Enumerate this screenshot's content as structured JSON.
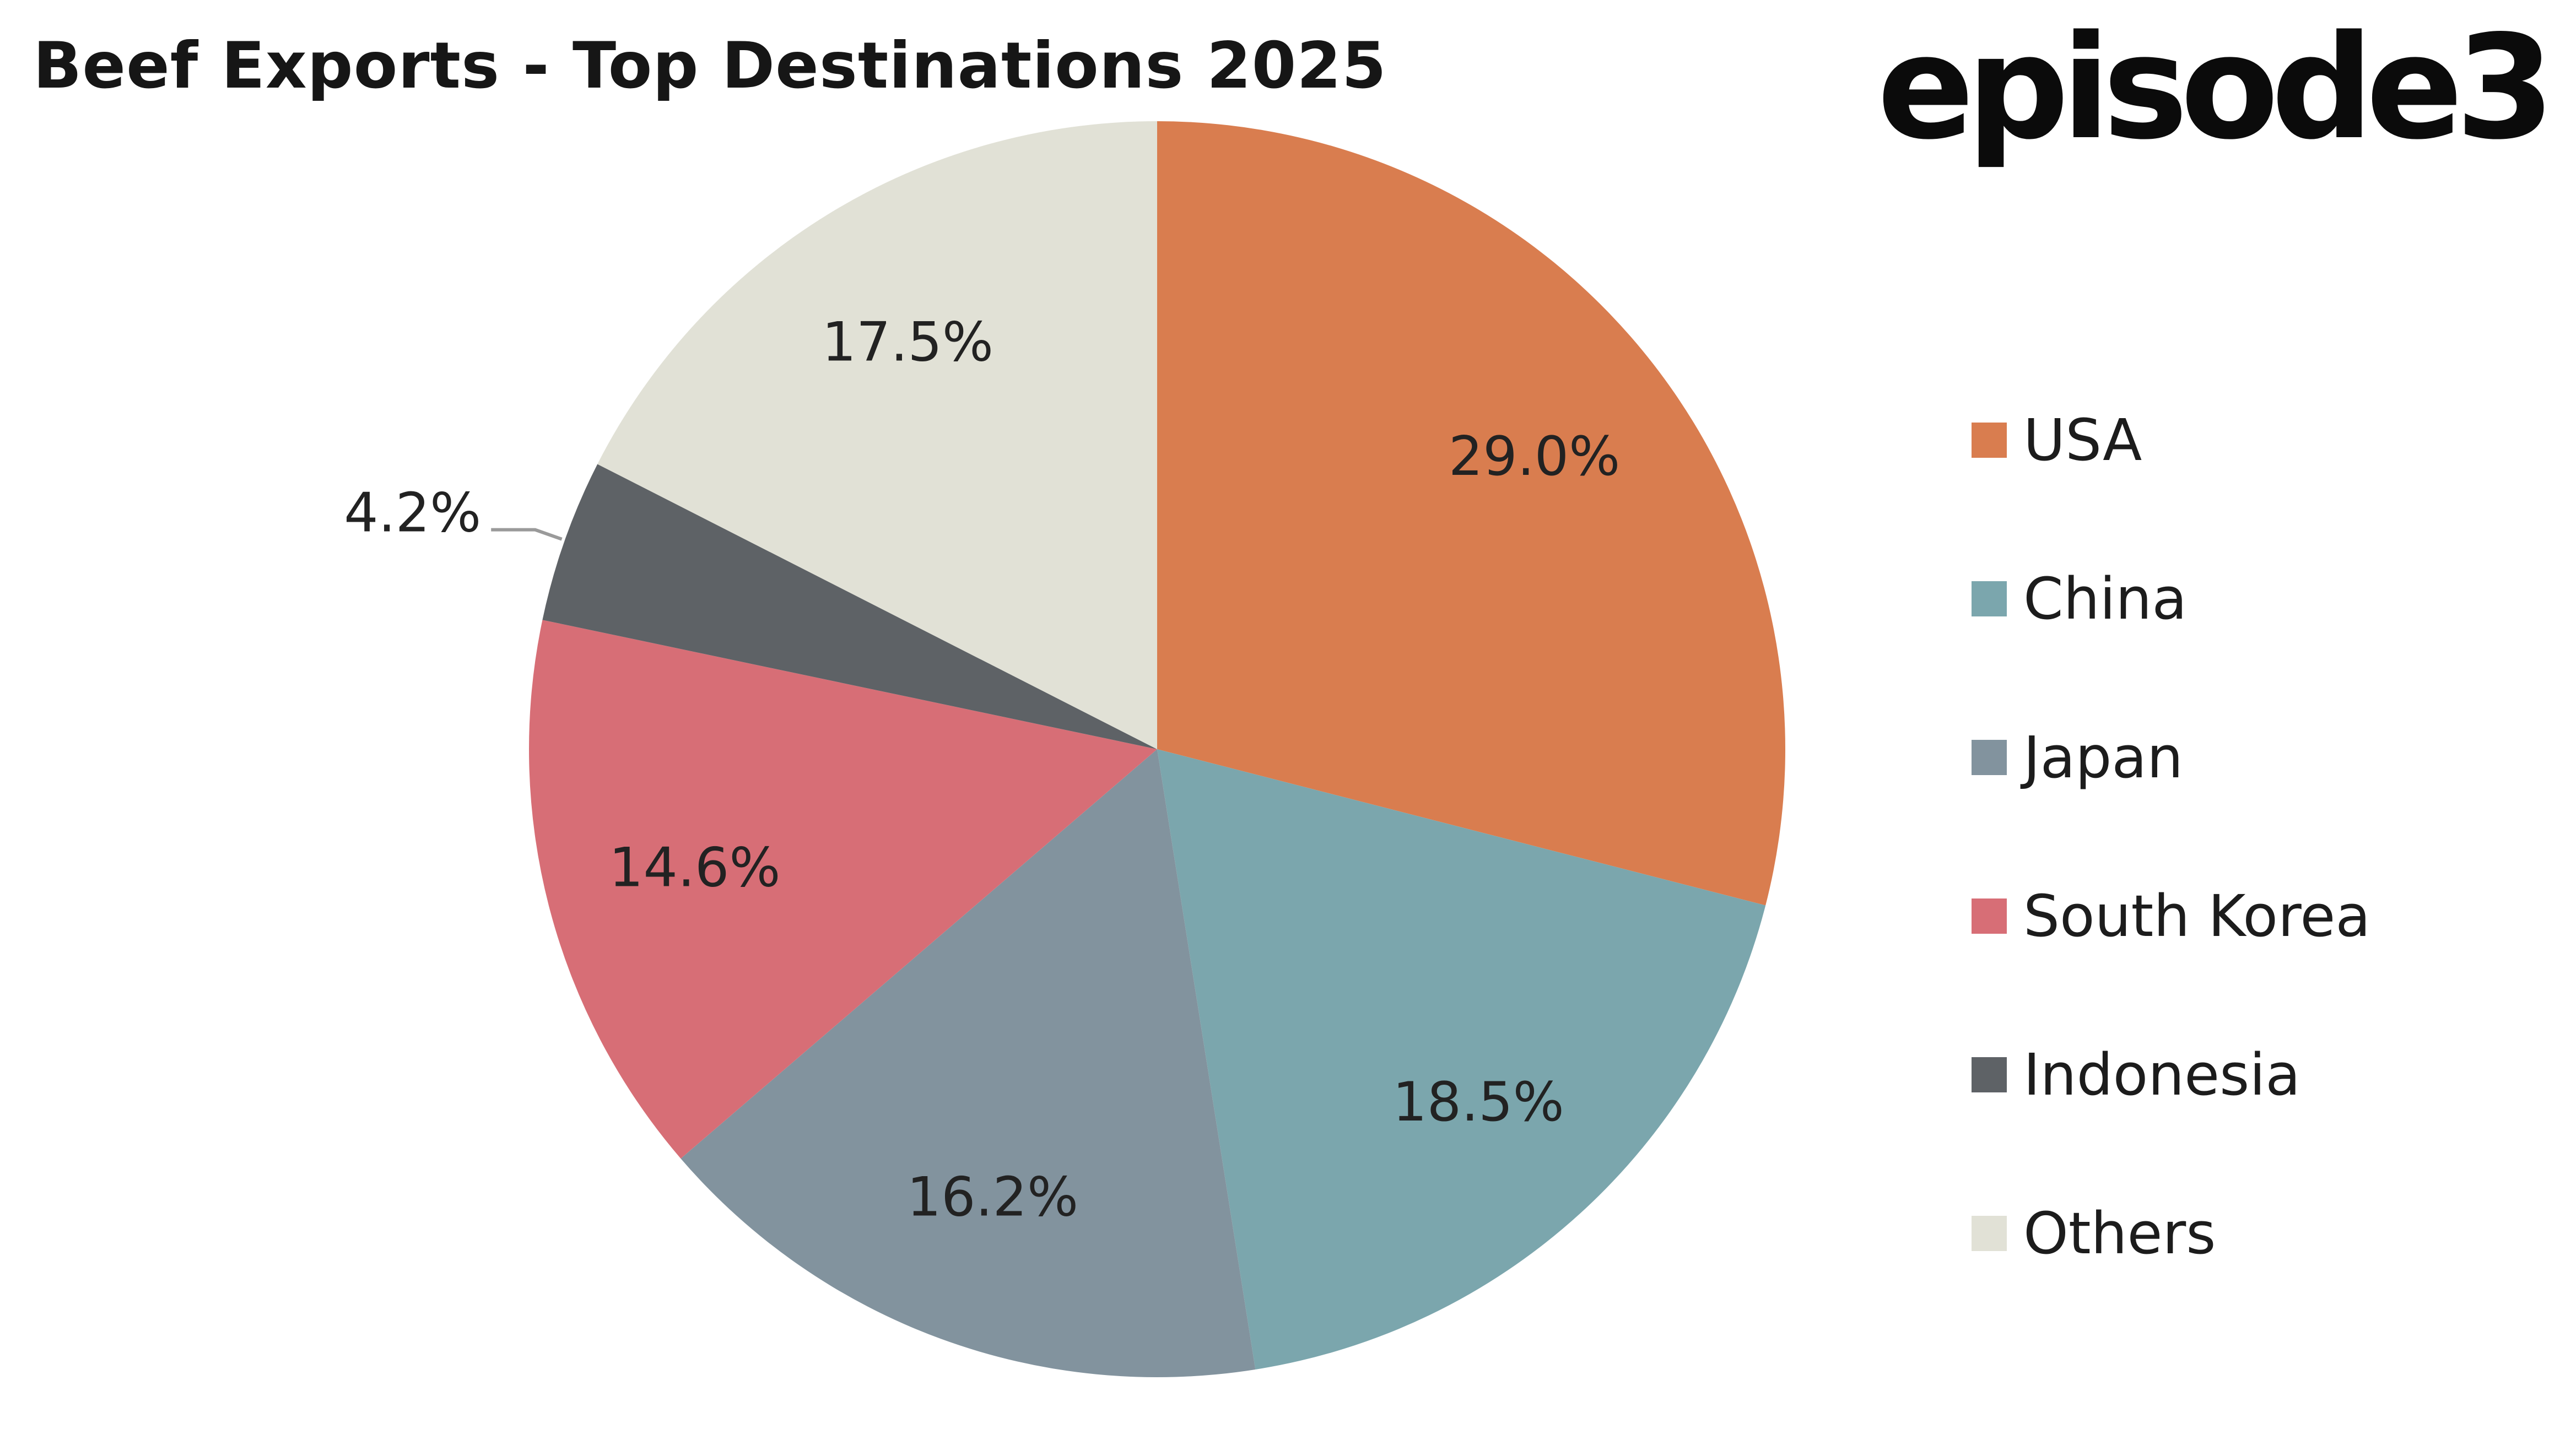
{
  "header": {
    "title": "Beef Exports - Top Destinations 2025",
    "logo_text": "episode3"
  },
  "chart_data": {
    "type": "pie",
    "title": "Beef Exports - Top Destinations 2025",
    "legend_position": "right",
    "start_angle": "12 o'clock, clockwise",
    "slices": [
      {
        "name": "USA",
        "value": 29.0,
        "label": "29.0%",
        "color": "#D97D4F"
      },
      {
        "name": "China",
        "value": 18.5,
        "label": "18.5%",
        "color": "#7BA6AD"
      },
      {
        "name": "Japan",
        "value": 16.2,
        "label": "16.2%",
        "color": "#82939E"
      },
      {
        "name": "South Korea",
        "value": 14.6,
        "label": "14.6%",
        "color": "#D76E76"
      },
      {
        "name": "Indonesia",
        "value": 4.2,
        "label": "4.2%",
        "color": "#5E6266"
      },
      {
        "name": "Others",
        "value": 17.5,
        "label": "17.5%",
        "color": "#E1E1D6"
      }
    ]
  }
}
